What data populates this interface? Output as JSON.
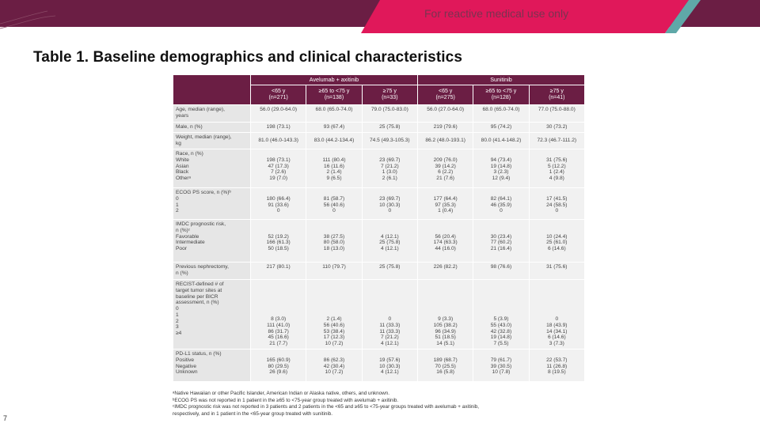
{
  "header": {
    "banner_text": "For reactive medical use only",
    "colors": {
      "banner": "#6b1e44",
      "accent": "#e0185a",
      "teal": "#5fa8a8",
      "table_header": "#6b1e44"
    }
  },
  "title": "Table 1. Baseline demographics and clinical characteristics",
  "table": {
    "groups": [
      "Avelumab + axitinib",
      "Sunitinib"
    ],
    "subheaders": [
      "<65 y\n(n=271)",
      "≥65 to <75 y\n(n=138)",
      "≥75 y\n(n=33)",
      "<65 y\n(n=275)",
      "≥65 to <75 y\n(n=128)",
      "≥75 y\n(n=41)"
    ],
    "rows": [
      {
        "label": "Age, median (range),\nyears",
        "values": [
          "56.0 (29.0-64.0)",
          "68.0 (65.0-74.0)",
          "79.0 (75.0-83.0)",
          "56.0 (27.0-64.0)",
          "68.0 (65.0-74.0)",
          "77.0 (75.0-88.0)"
        ]
      },
      {
        "label": "Male, n (%)",
        "values": [
          "198 (73.1)",
          "93 (67.4)",
          "25 (75.8)",
          "219 (79.6)",
          "95 (74.2)",
          "30 (73.2)"
        ]
      },
      {
        "label": "Weight, median (range),\nkg",
        "values": [
          "81.0 (46.0-143.3)",
          "83.0 (44.2-134.4)",
          "74.5 (49.3-105.3)",
          "86.2 (48.0-193.1)",
          "80.0 (41.4-148.2)",
          "72.3 (46.7-111.2)"
        ]
      },
      {
        "label": "Race, n (%)\n    White\n    Asian\n    Black\n    Otherᵃ",
        "values": [
          "\n198 (73.1)\n47 (17.3)\n7 (2.6)\n19 (7.0)",
          "\n111 (80.4)\n16 (11.6)\n2 (1.4)\n9 (6.5)",
          "\n23 (69.7)\n7 (21.2)\n1 (3.0)\n2 (6.1)",
          "\n209 (76.0)\n39 (14.2)\n6 (2.2)\n21 (7.6)",
          "\n94 (73.4)\n19 (14.8)\n3 (2.3)\n12 (9.4)",
          "\n31 (75.6)\n5 (12.2)\n1 (2.4)\n4 (9.8)"
        ]
      },
      {
        "label": "ECOG PS score, n (%)ᵇ\n    0\n    1\n    2",
        "values": [
          "\n180 (66.4)\n91 (33.6)\n0",
          "\n81 (58.7)\n56 (40.6)\n0",
          "\n23 (69.7)\n10 (30.3)\n0",
          "\n177 (64.4)\n97 (35.3)\n1 (0.4)",
          "\n82 (64.1)\n46 (35.9)\n0",
          "\n17 (41.5)\n24 (58.5)\n0"
        ]
      },
      {
        "label": "IMDC prognostic risk,\nn (%)ᶜ\n    Favorable\n    Intermediate\n    Poor",
        "values": [
          "\n\n52 (19.2)\n166 (61.3)\n50 (18.5)",
          "\n\n38 (27.5)\n80 (58.0)\n18 (13.0)",
          "\n\n4 (12.1)\n25 (75.8)\n4 (12.1)",
          "\n\n56 (20.4)\n174 (63.3)\n44 (16.0)",
          "\n\n30 (23.4)\n77 (60.2)\n21 (16.4)",
          "\n\n10 (24.4)\n25 (61.0)\n6 (14.6)"
        ]
      },
      {
        "label": "Previous nephrectomy,\nn (%)",
        "values": [
          "217 (80.1)",
          "110 (79.7)",
          "25 (75.8)",
          "226 (82.2)",
          "98 (76.6)",
          "31 (75.6)"
        ]
      },
      {
        "label": "RECIST-defined # of\ntarget tumor sites at\nbaseline per BICR\nassessment, n (%)\n    0\n    1\n    2\n    3\n    ≥4",
        "values": [
          "8 (3.0)\n111 (41.0)\n86 (31.7)\n45 (16.6)\n21 (7.7)",
          "2 (1.4)\n56 (40.6)\n53 (38.4)\n17 (12.3)\n10 (7.2)",
          "0\n11 (33.3)\n11 (33.3)\n7 (21.2)\n4 (12.1)",
          "9 (3.3)\n105 (38.2)\n96 (34.9)\n51 (18.5)\n14 (5.1)",
          "5 (3.9)\n55 (43.0)\n42 (32.8)\n19 (14.8)\n7 (5.5)",
          "0\n18 (43.9)\n14 (34.1)\n6 (14.6)\n3 (7.3)"
        ]
      },
      {
        "label": "PD-L1 status, n (%)\n    Positive\n    Negative\n    Unknown",
        "values": [
          "\n165 (60.9)\n80 (29.5)\n26 (9.6)",
          "\n86 (62.3)\n42 (30.4)\n10 (7.2)",
          "\n19 (57.6)\n10 (30.3)\n4 (12.1)",
          "\n189 (68.7)\n70 (25.5)\n16 (5.8)",
          "\n79 (61.7)\n39 (30.5)\n10 (7.8)",
          "\n22 (53.7)\n11 (26.8)\n8 (19.5)"
        ]
      }
    ]
  },
  "footnotes": [
    "ᵃNative Hawaiian or other Pacific Islander, American Indian or Alaska native, others, and unknown.",
    "ᵇECOG PS was not reported in 1 patient in the ≥65 to <75-year group treated with avelumab + axitinib.",
    "ᶜIMDC prognostic risk was not reported in 3 patients and 2 patients in the <65 and ≥65 to <75-year groups treated with avelumab + axitinib,",
    "respectively, and in 1 patient in the <65-year group treated with sunitinib."
  ],
  "page_number": "7"
}
